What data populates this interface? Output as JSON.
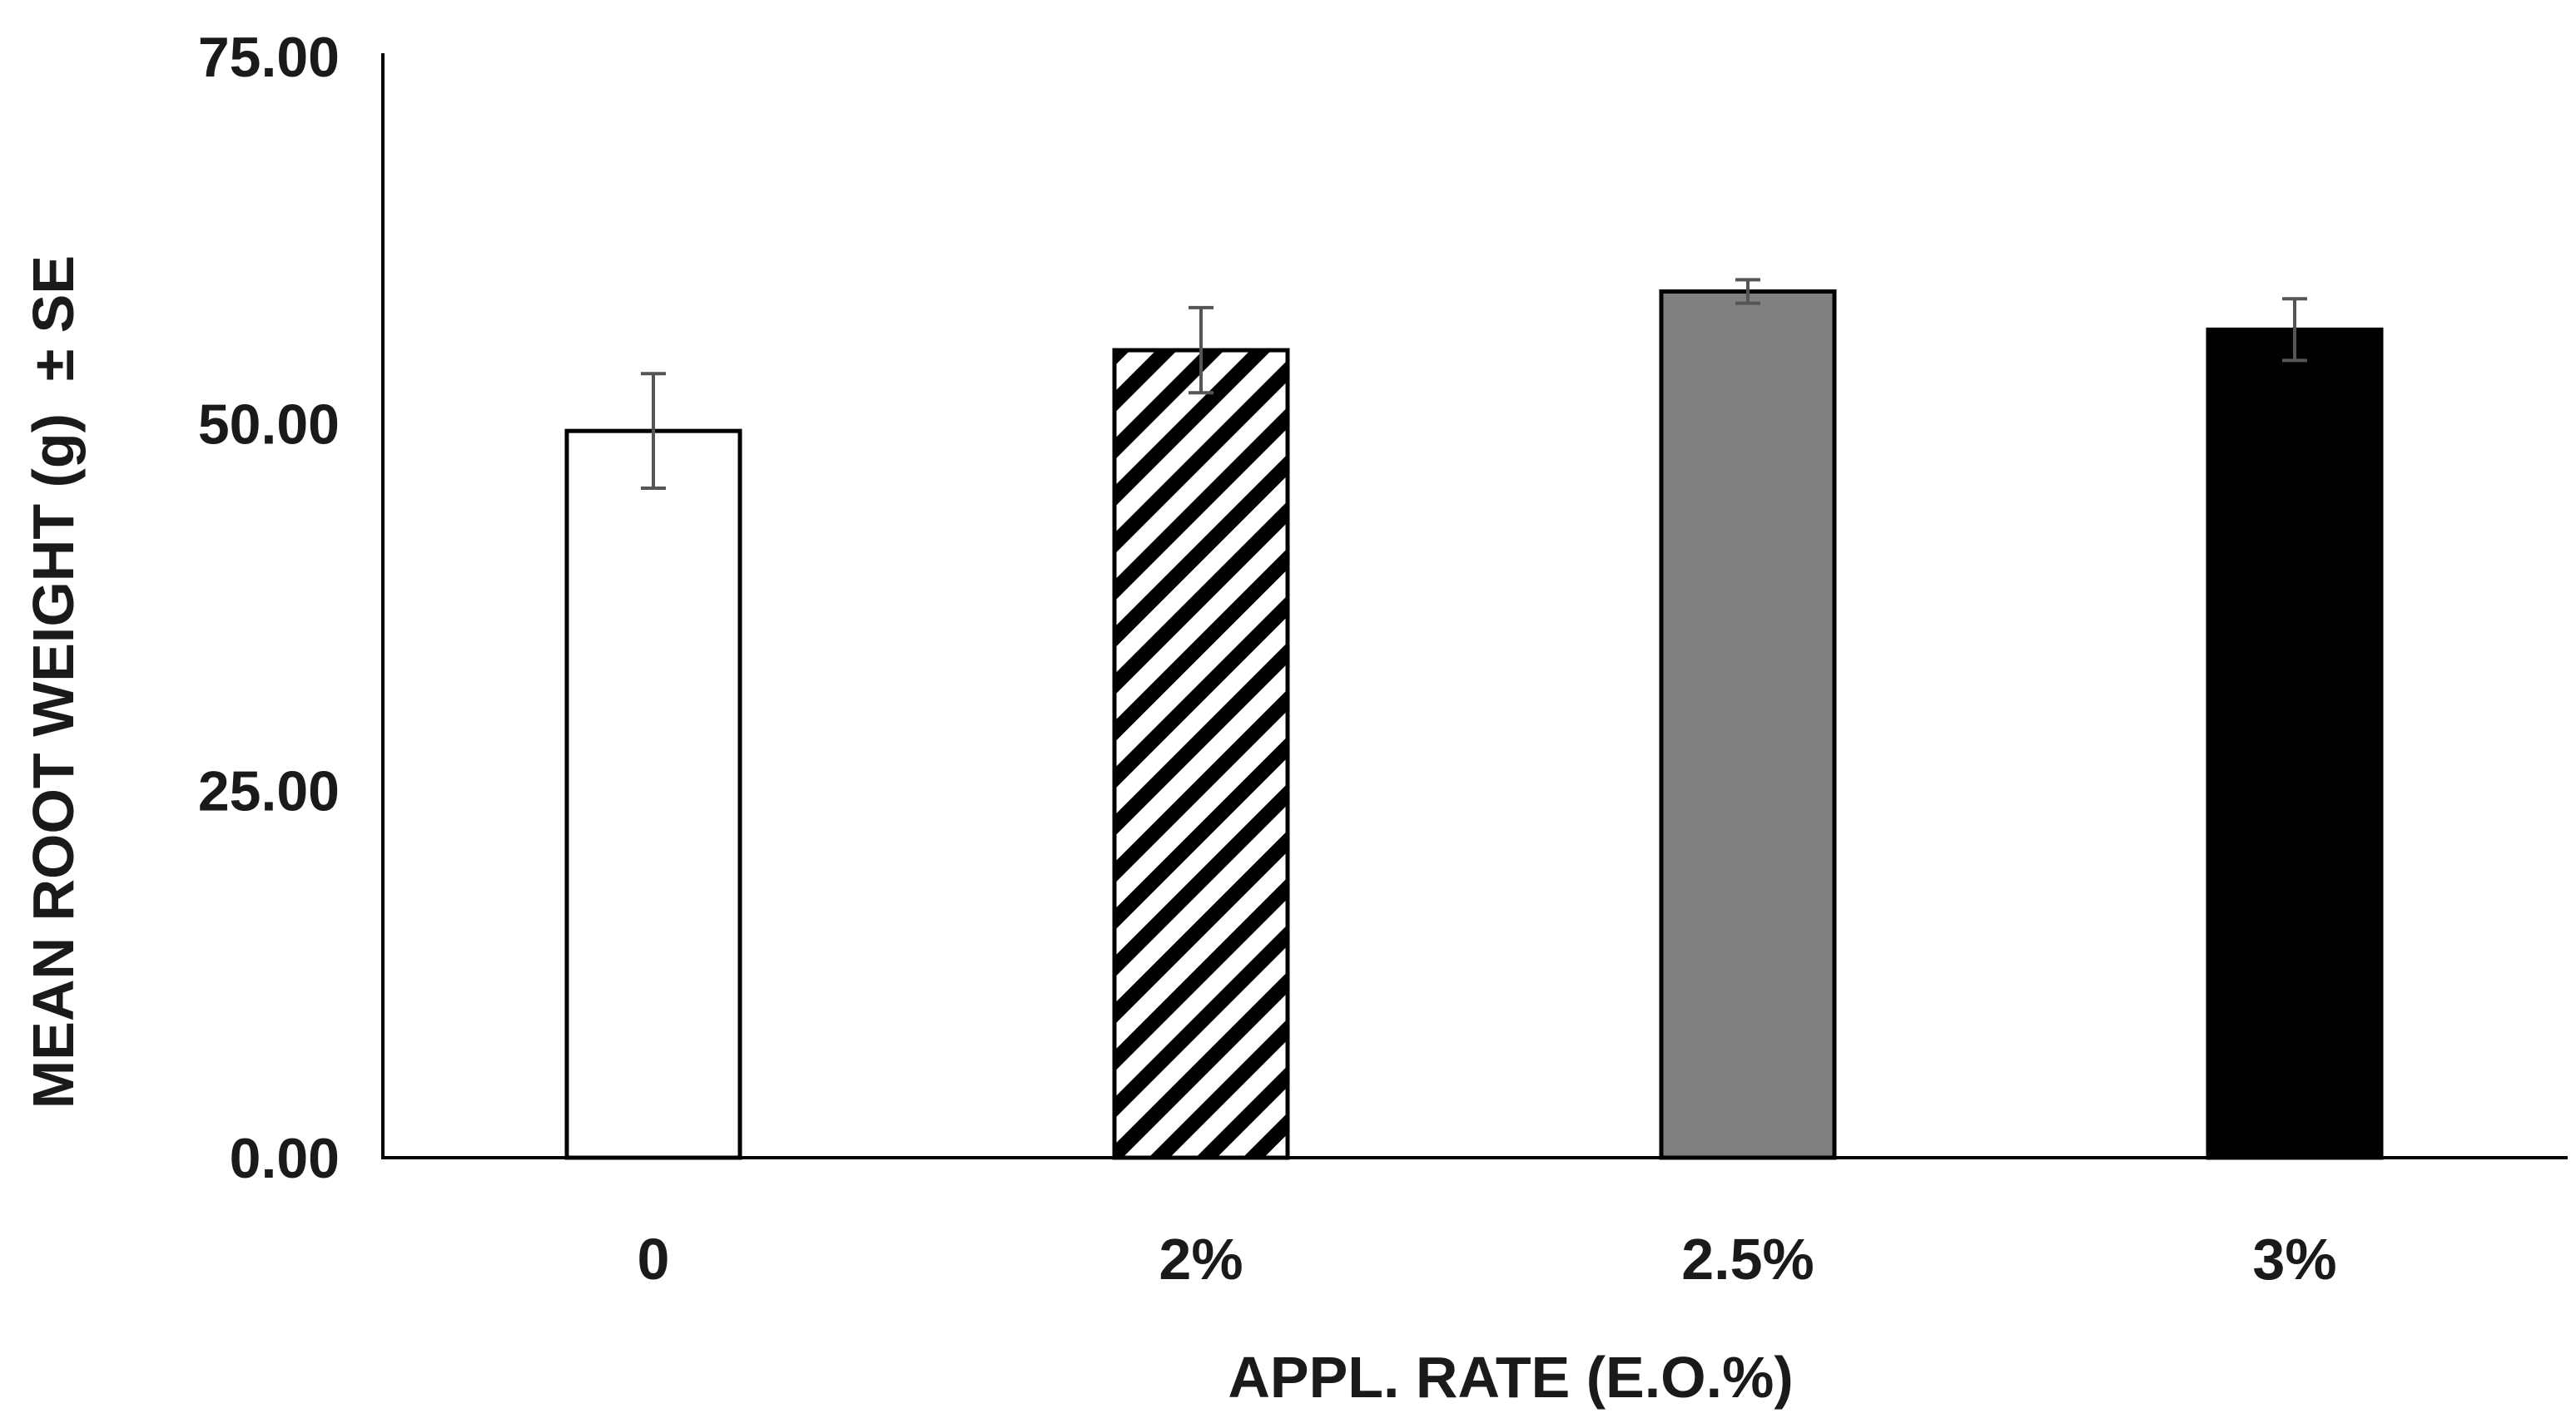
{
  "chart_data": {
    "type": "bar",
    "title": "",
    "xlabel": "APPL. RATE (E.O.%)",
    "ylabel": "MEAN ROOT WEIGHT (g)  ± SE",
    "ylim": [
      0,
      75
    ],
    "yticks": [
      "0.00",
      "25.00",
      "50.00",
      "75.00"
    ],
    "ytick_values": [
      0,
      25,
      50,
      75
    ],
    "grid": false,
    "legend": "none",
    "categories": [
      "0",
      "2%",
      "2.5%",
      "3%"
    ],
    "values": [
      49.5,
      55.0,
      59.0,
      56.4
    ],
    "errors": [
      3.9,
      2.9,
      0.8,
      2.1
    ],
    "fills": [
      "white",
      "hatched",
      "gray",
      "black"
    ],
    "colors": {
      "bar_stroke": "#000000",
      "gray_fill": "#808080",
      "black_fill": "#000000",
      "white_fill": "#ffffff",
      "error_bar": "#555555",
      "axis": "#000000"
    }
  }
}
